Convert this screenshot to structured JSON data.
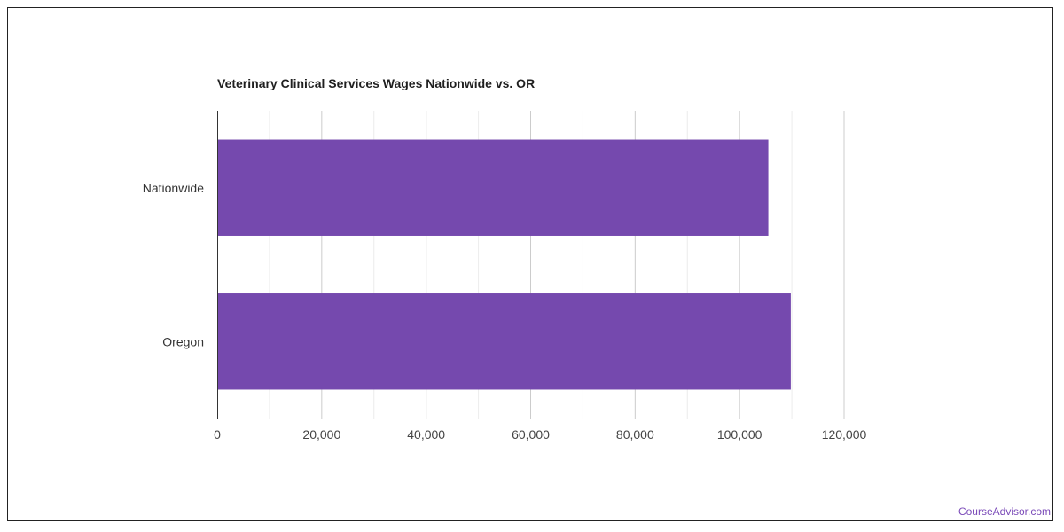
{
  "chart_data": {
    "type": "bar",
    "orientation": "horizontal",
    "title": "Veterinary Clinical Services Wages Nationwide vs. OR",
    "xlabel": "",
    "ylabel": "",
    "categories": [
      "Nationwide",
      "Oregon"
    ],
    "series": [
      {
        "values": [
          105500,
          109800
        ]
      }
    ],
    "xlim": [
      0,
      120000
    ],
    "x_ticks": [
      0,
      20000,
      40000,
      60000,
      80000,
      100000,
      120000
    ],
    "x_tick_labels": [
      "0",
      "20,000",
      "40,000",
      "60,000",
      "80,000",
      "100,000",
      "120,000"
    ],
    "grid": true,
    "legend": "none",
    "bar_color": "#7549ae"
  },
  "footer": {
    "source_label": "CourseAdvisor.com"
  }
}
